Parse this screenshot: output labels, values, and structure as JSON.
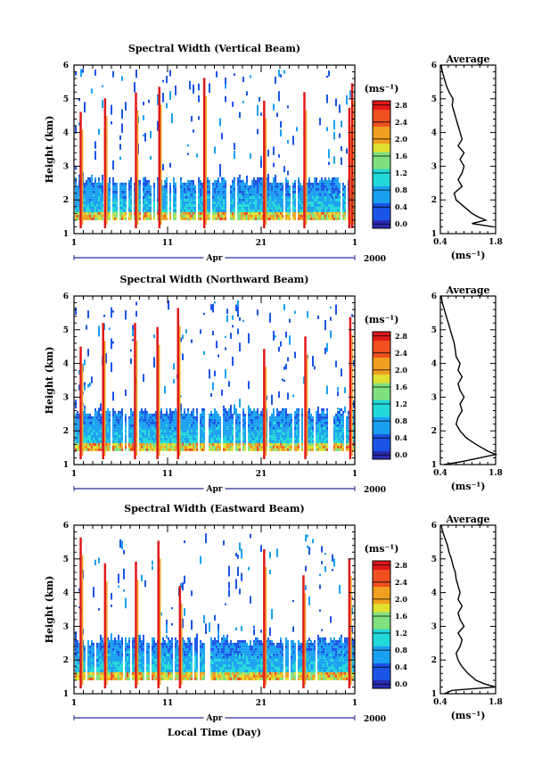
{
  "figure": {
    "xlabel": "Local Time (Day)",
    "month_label": "Apr",
    "year_label": "2000",
    "avg_xlabel": "(ms⁻¹)",
    "cbar_unit": "(ms⁻¹)"
  },
  "chart_data": [
    {
      "type": "heatmap",
      "title": "Spectral Width (Vertical Beam)",
      "ylabel": "Height (km)",
      "xlim": [
        1,
        31
      ],
      "ylim": [
        1,
        6
      ],
      "xticks": [
        "1",
        "11",
        "21",
        "1"
      ],
      "yticks": [
        "1",
        "2",
        "3",
        "4",
        "5",
        "6"
      ],
      "colorbar": {
        "range": [
          -0.1,
          2.9
        ],
        "ticks": [
          "0.0",
          "0.4",
          "0.8",
          "1.2",
          "1.6",
          "2.0",
          "2.4",
          "2.8"
        ]
      },
      "dense_layer_top_km": 2.6,
      "spikes_day": [
        1.6,
        4.2,
        7.5,
        10.0,
        14.8,
        21.2,
        25.5,
        30.3,
        30.6
      ],
      "average_panel": {
        "title": "Average",
        "xlim": [
          0.4,
          1.8
        ],
        "xticks": [
          "0.4",
          "1.8"
        ],
        "yticks": [
          "1",
          "2",
          "3",
          "4",
          "5",
          "6"
        ],
        "profile": {
          "height": [
            1.2,
            1.3,
            1.4,
            1.5,
            1.6,
            1.8,
            2.0,
            2.2,
            2.4,
            2.6,
            2.8,
            3.0,
            3.2,
            3.4,
            3.6,
            3.8,
            4.0,
            4.2,
            4.4,
            4.6,
            4.8,
            5.0,
            5.2,
            5.4,
            5.6,
            5.8,
            6.0
          ],
          "width": [
            1.75,
            1.2,
            1.55,
            1.35,
            1.2,
            1.0,
            0.8,
            0.75,
            0.95,
            0.85,
            0.95,
            1.0,
            0.9,
            1.0,
            0.85,
            0.95,
            0.9,
            0.85,
            0.8,
            0.75,
            0.7,
            0.72,
            0.62,
            0.55,
            0.5,
            0.45,
            0.42
          ]
        }
      }
    },
    {
      "type": "heatmap",
      "title": "Spectral Width (Northward Beam)",
      "ylabel": "Height (km)",
      "xlim": [
        1,
        31
      ],
      "ylim": [
        1,
        6
      ],
      "xticks": [
        "1",
        "11",
        "21",
        "1"
      ],
      "yticks": [
        "1",
        "2",
        "3",
        "4",
        "5",
        "6"
      ],
      "colorbar": {
        "range": [
          -0.1,
          2.9
        ],
        "ticks": [
          "0.0",
          "0.4",
          "0.8",
          "1.2",
          "1.6",
          "2.0",
          "2.4",
          "2.8"
        ]
      },
      "dense_layer_top_km": 2.6,
      "spikes_day": [
        1.6,
        4.0,
        7.4,
        9.8,
        12.0,
        21.2,
        25.6,
        30.4
      ],
      "average_panel": {
        "title": "Average",
        "xlim": [
          0.4,
          1.8
        ],
        "xticks": [
          "0.4",
          "1.8"
        ],
        "yticks": [
          "1",
          "2",
          "3",
          "4",
          "5",
          "6"
        ],
        "profile": {
          "height": [
            1.0,
            1.1,
            1.2,
            1.3,
            1.4,
            1.6,
            1.8,
            2.0,
            2.2,
            2.4,
            2.6,
            2.8,
            3.0,
            3.2,
            3.4,
            3.6,
            3.8,
            4.0,
            4.2,
            4.4,
            4.6,
            4.8,
            5.0,
            5.2,
            5.4,
            5.6,
            5.8,
            6.0
          ],
          "width": [
            0.5,
            1.0,
            1.4,
            1.8,
            1.6,
            1.3,
            1.05,
            0.9,
            0.8,
            0.85,
            0.95,
            0.9,
            1.0,
            0.9,
            0.85,
            0.95,
            0.85,
            0.9,
            0.8,
            0.78,
            0.75,
            0.7,
            0.65,
            0.6,
            0.55,
            0.5,
            0.45,
            0.42
          ]
        }
      }
    },
    {
      "type": "heatmap",
      "title": "Spectral Width (Eastward Beam)",
      "ylabel": "Height (km)",
      "xlim": [
        1,
        31
      ],
      "ylim": [
        1,
        6
      ],
      "xticks": [
        "1",
        "11",
        "21",
        "1"
      ],
      "yticks": [
        "1",
        "2",
        "3",
        "4",
        "5",
        "6"
      ],
      "colorbar": {
        "range": [
          -0.1,
          2.9
        ],
        "ticks": [
          "0.0",
          "0.4",
          "0.8",
          "1.2",
          "1.6",
          "2.0",
          "2.4",
          "2.8"
        ]
      },
      "dense_layer_top_km": 2.6,
      "spikes_day": [
        1.6,
        4.2,
        7.5,
        9.9,
        12.2,
        21.2,
        25.4,
        30.3
      ],
      "average_panel": {
        "title": "Average",
        "xlim": [
          0.4,
          1.8
        ],
        "xticks": [
          "0.4",
          "1.8"
        ],
        "yticks": [
          "1",
          "2",
          "3",
          "4",
          "5",
          "6"
        ],
        "profile": {
          "height": [
            1.0,
            1.1,
            1.2,
            1.3,
            1.4,
            1.6,
            1.8,
            2.0,
            2.2,
            2.4,
            2.6,
            2.8,
            3.0,
            3.2,
            3.4,
            3.6,
            3.8,
            4.0,
            4.2,
            4.4,
            4.6,
            4.8,
            5.0,
            5.2,
            5.4,
            5.6,
            5.8,
            6.0
          ],
          "width": [
            0.5,
            0.7,
            1.8,
            1.5,
            1.3,
            1.1,
            0.95,
            0.85,
            0.8,
            0.9,
            0.95,
            0.85,
            1.0,
            0.9,
            0.85,
            0.95,
            0.85,
            0.9,
            0.85,
            0.8,
            0.78,
            0.72,
            0.68,
            0.62,
            0.58,
            0.52,
            0.46,
            0.42
          ]
        }
      }
    }
  ]
}
